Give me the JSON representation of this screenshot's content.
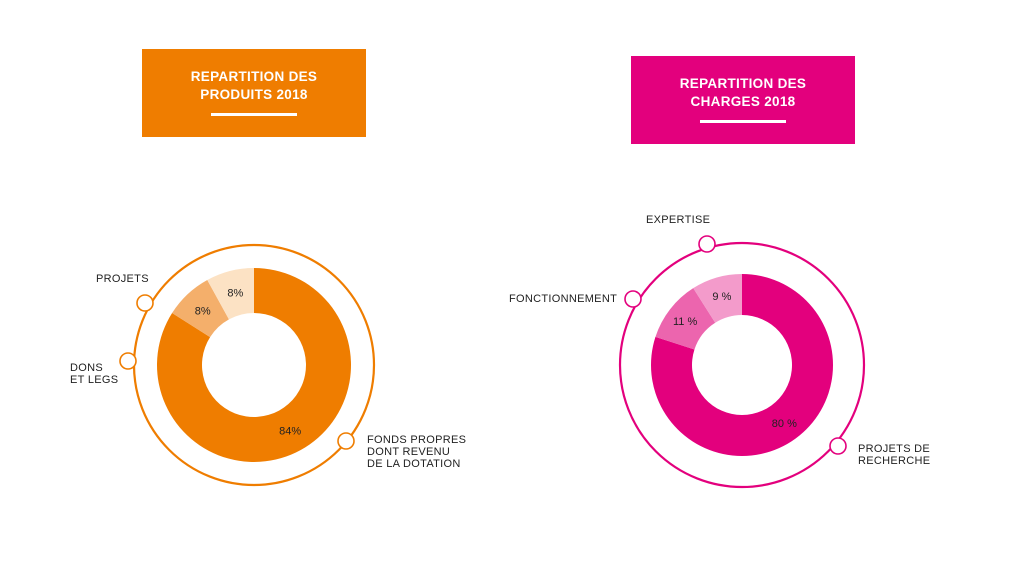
{
  "colors": {
    "orange_main": "#EF7D00",
    "orange_mid": "#F4AF6B",
    "orange_light": "#FCE2C4",
    "pink_main": "#E3007D",
    "pink_mid": "#EC65AE",
    "pink_light": "#F39BCB"
  },
  "chart_data": [
    {
      "type": "pie",
      "title": [
        "REPARTITION DES",
        "PRODUITS 2018"
      ],
      "slices": [
        {
          "label": [
            "FONDS PROPRES",
            "DONT REVENU",
            "DE LA DOTATION"
          ],
          "value": 84,
          "display": "84%",
          "color": "#EF7D00"
        },
        {
          "label": [
            "DONS",
            "ET LEGS"
          ],
          "value": 8,
          "display": "8%",
          "color": "#F4AF6B"
        },
        {
          "label": [
            "PROJETS"
          ],
          "value": 8,
          "display": "8%",
          "color": "#FCE2C4"
        }
      ]
    },
    {
      "type": "pie",
      "title": [
        "REPARTITION DES",
        "CHARGES 2018"
      ],
      "slices": [
        {
          "label": [
            "PROJETS DE",
            "RECHERCHE"
          ],
          "value": 80,
          "display": "80 %",
          "color": "#E3007D"
        },
        {
          "label": [
            "FONCTIONNEMENT"
          ],
          "value": 11,
          "display": "11 %",
          "color": "#EC65AE"
        },
        {
          "label": [
            "EXPERTISE"
          ],
          "value": 9,
          "display": "9 %",
          "color": "#F39BCB"
        }
      ]
    }
  ]
}
